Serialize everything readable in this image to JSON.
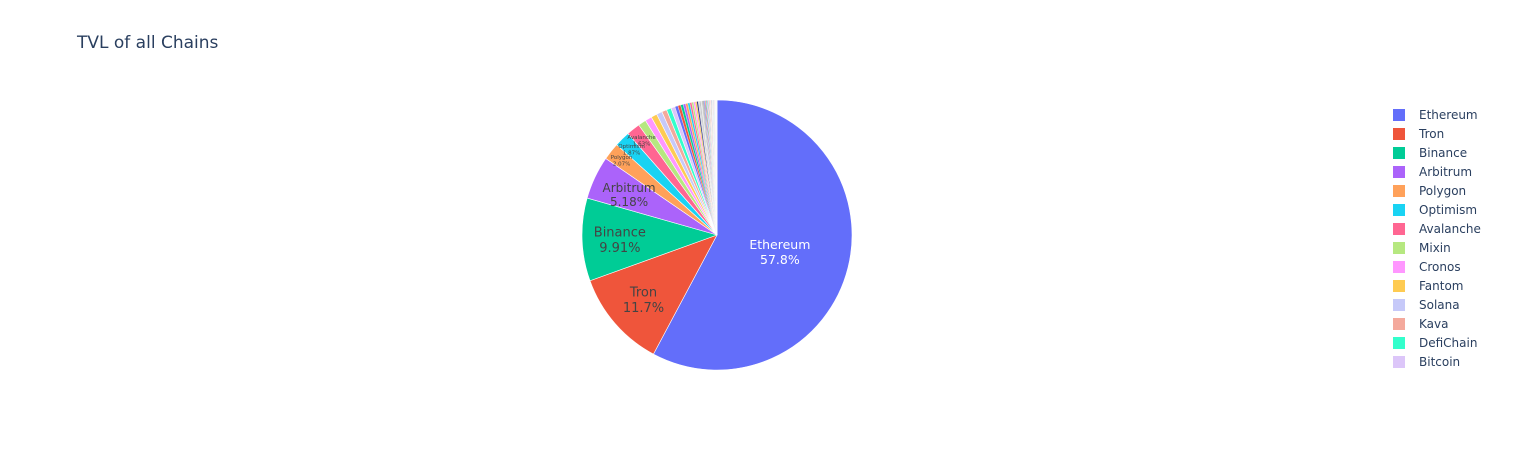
{
  "chart_data": {
    "type": "pie",
    "title": "TVL of all Chains",
    "labels": [
      "Ethereum",
      "Tron",
      "Binance",
      "Arbitrum",
      "Polygon",
      "Optimism",
      "Avalanche",
      "Mixin",
      "Cronos",
      "Fantom",
      "Solana",
      "Kava",
      "DefiChain",
      "Bitcoin"
    ],
    "values": [
      57.8,
      11.7,
      9.91,
      5.18,
      2.07,
      1.87,
      1.63,
      0.95,
      0.8,
      0.72,
      0.68,
      0.6,
      0.55,
      0.5
    ],
    "text_labels": [
      "57.8%",
      "11.7%",
      "9.91%",
      "5.18%",
      "2.07%",
      "1.87%",
      "1.63%",
      "",
      "",
      "",
      "",
      "",
      "",
      ""
    ],
    "other_slices_percent": 5.04,
    "colors": [
      "#636efa",
      "#EF553B",
      "#00cc96",
      "#ab63fa",
      "#FFA15A",
      "#19d3f3",
      "#FF6692",
      "#B6E880",
      "#FF97FF",
      "#FECB52",
      "#c6c9f9",
      "#F4A99C",
      "#33ffcc",
      "#dcc6f9"
    ],
    "legend_position": "right",
    "sort": "descending",
    "direction": "clockwise",
    "start": "top"
  }
}
